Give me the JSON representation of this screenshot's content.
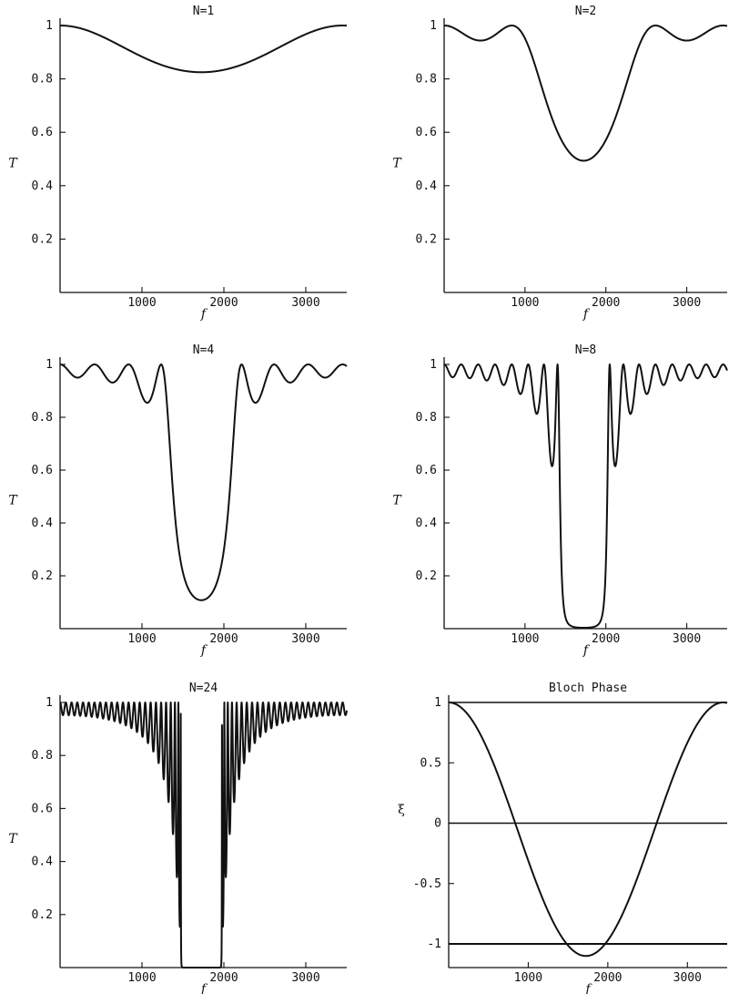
{
  "figure_title": "",
  "chart_data": [
    {
      "id": "n1",
      "type": "line",
      "title": "N=1",
      "xlabel": "f",
      "ylabel": "T",
      "N": 1,
      "xlim": [
        0,
        3500
      ],
      "ylim": [
        0,
        1
      ],
      "xticks": [
        1000,
        2000,
        3000
      ],
      "xtick_labels": [
        "1000",
        "2000",
        "3000"
      ],
      "yticks": [
        0.2,
        0.4,
        0.6,
        0.8,
        1
      ],
      "ytick_labels": [
        "0.2",
        "0.4",
        "0.6",
        "0.8",
        "1"
      ],
      "curve_model": "transfer_matrix_transmission",
      "f_center": 1725,
      "min_transmission": 0.825,
      "series": [
        {
          "name": "",
          "x": [
            0,
            500,
            1000,
            1500,
            1725,
            2000,
            2500,
            3000,
            3450
          ],
          "y": [
            1,
            0.96,
            0.88,
            0.835,
            0.825,
            0.835,
            0.9,
            0.97,
            1
          ]
        }
      ]
    },
    {
      "id": "n2",
      "type": "line",
      "title": "N=2",
      "xlabel": "f",
      "ylabel": "T",
      "N": 2,
      "xlim": [
        0,
        3500
      ],
      "ylim": [
        0,
        1
      ],
      "xticks": [
        1000,
        2000,
        3000
      ],
      "xtick_labels": [
        "1000",
        "2000",
        "3000"
      ],
      "yticks": [
        0.2,
        0.4,
        0.6,
        0.8,
        1
      ],
      "ytick_labels": [
        "0.2",
        "0.4",
        "0.6",
        "0.8",
        "1"
      ],
      "curve_model": "transfer_matrix_transmission",
      "f_center": 1725,
      "min_transmission": 0.495,
      "series": [
        {
          "name": "",
          "x": [
            0,
            400,
            800,
            1200,
            1725,
            2200,
            2600,
            3000,
            3450
          ],
          "y": [
            1,
            0.95,
            1,
            0.75,
            0.495,
            0.75,
            1,
            0.95,
            1
          ]
        }
      ]
    },
    {
      "id": "n4",
      "type": "line",
      "title": "N=4",
      "xlabel": "f",
      "ylabel": "T",
      "N": 4,
      "xlim": [
        0,
        3500
      ],
      "ylim": [
        0,
        1
      ],
      "xticks": [
        1000,
        2000,
        3000
      ],
      "xtick_labels": [
        "1000",
        "2000",
        "3000"
      ],
      "yticks": [
        0.2,
        0.4,
        0.6,
        0.8,
        1
      ],
      "ytick_labels": [
        "0.2",
        "0.4",
        "0.6",
        "0.8",
        "1"
      ],
      "curve_model": "transfer_matrix_transmission",
      "f_center": 1725,
      "min_transmission": 0.11,
      "series": [
        {
          "name": "",
          "x": [
            0,
            200,
            400,
            650,
            850,
            1050,
            1200,
            1725,
            2200,
            2350,
            2550,
            2800,
            3000,
            3250,
            3450
          ],
          "y": [
            1,
            0.95,
            1,
            0.93,
            1,
            0.855,
            1,
            0.11,
            1,
            0.855,
            1,
            0.93,
            1,
            0.95,
            1
          ]
        }
      ]
    },
    {
      "id": "n8",
      "type": "line",
      "title": "N=8",
      "xlabel": "f",
      "ylabel": "T",
      "N": 8,
      "xlim": [
        0,
        3500
      ],
      "ylim": [
        0,
        1
      ],
      "xticks": [
        1000,
        2000,
        3000
      ],
      "xtick_labels": [
        "1000",
        "2000",
        "3000"
      ],
      "yticks": [
        0.2,
        0.4,
        0.6,
        0.8,
        1
      ],
      "ytick_labels": [
        "0.2",
        "0.4",
        "0.6",
        "0.8",
        "1"
      ],
      "curve_model": "transfer_matrix_transmission",
      "f_center": 1725,
      "min_transmission": 0.005,
      "series": [
        {
          "name": "",
          "x": [
            0,
            300,
            600,
            900,
            1100,
            1250,
            1330,
            1400,
            1725,
            2050,
            2120,
            2200,
            2350,
            2550,
            2850,
            3150,
            3450
          ],
          "y": [
            1,
            0.96,
            0.95,
            0.89,
            0.82,
            0.81,
            0.62,
            1,
            0.005,
            1,
            0.62,
            0.81,
            0.89,
            0.93,
            0.95,
            0.96,
            1
          ]
        }
      ]
    },
    {
      "id": "n24",
      "type": "line",
      "title": "N=24",
      "xlabel": "f",
      "ylabel": "T",
      "N": 24,
      "xlim": [
        0,
        3500
      ],
      "ylim": [
        0,
        1
      ],
      "xticks": [
        1000,
        2000,
        3000
      ],
      "xtick_labels": [
        "1000",
        "2000",
        "3000"
      ],
      "yticks": [
        0.2,
        0.4,
        0.6,
        0.8,
        1
      ],
      "ytick_labels": [
        "0.2",
        "0.4",
        "0.6",
        "0.8",
        "1"
      ],
      "curve_model": "transfer_matrix_transmission",
      "f_center": 1725,
      "min_transmission": 0,
      "series": [
        {
          "name": "",
          "x": [
            0,
            500,
            1000,
            1300,
            1450,
            1500,
            1725,
            1950,
            2000,
            2150,
            2450,
            3000,
            3450
          ],
          "y": [
            1,
            0.96,
            0.92,
            0.55,
            0.1,
            0,
            0,
            0,
            0.1,
            0.55,
            0.88,
            0.96,
            1
          ]
        }
      ]
    },
    {
      "id": "bloch",
      "type": "line",
      "title": "Bloch Phase",
      "xlabel": "f",
      "ylabel": "ξ",
      "xlim": [
        0,
        3500
      ],
      "ylim": [
        -1.15,
        1.15
      ],
      "xticks": [
        1000,
        2000,
        3000
      ],
      "xtick_labels": [
        "1000",
        "2000",
        "3000"
      ],
      "yticks": [
        -1,
        -0.5,
        0,
        0.5,
        1
      ],
      "ytick_labels": [
        "-1",
        "-0.5",
        "0",
        "0.5",
        "1"
      ],
      "hlines": [
        1,
        0,
        -1
      ],
      "f_center": 1725,
      "min_value": -1.1,
      "series": [
        {
          "name": "",
          "x": [
            0,
            500,
            800,
            1200,
            1725,
            2200,
            2600,
            3000,
            3450
          ],
          "y": [
            1,
            0.45,
            0,
            -0.75,
            -1.1,
            -0.75,
            0,
            0.6,
            1
          ]
        }
      ]
    }
  ]
}
